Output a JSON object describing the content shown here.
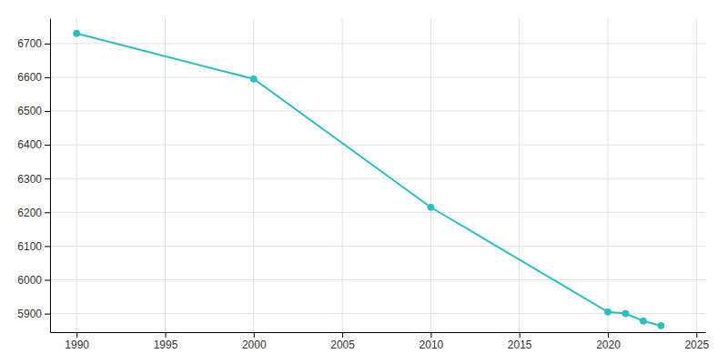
{
  "chart_data": {
    "type": "line",
    "x": [
      1990,
      2000,
      2010,
      2020,
      2021,
      2022,
      2023
    ],
    "values": [
      6730,
      6595,
      6215,
      5905,
      5900,
      5878,
      5864
    ],
    "color": "#2ABFBF",
    "marker": "o",
    "xlim": [
      1988.5,
      2025.5
    ],
    "ylim": [
      5845,
      6775
    ],
    "xticks": [
      1990,
      1995,
      2000,
      2005,
      2010,
      2015,
      2020,
      2025
    ],
    "yticks": [
      5900,
      6000,
      6100,
      6200,
      6300,
      6400,
      6500,
      6600,
      6700
    ],
    "grid": true
  }
}
